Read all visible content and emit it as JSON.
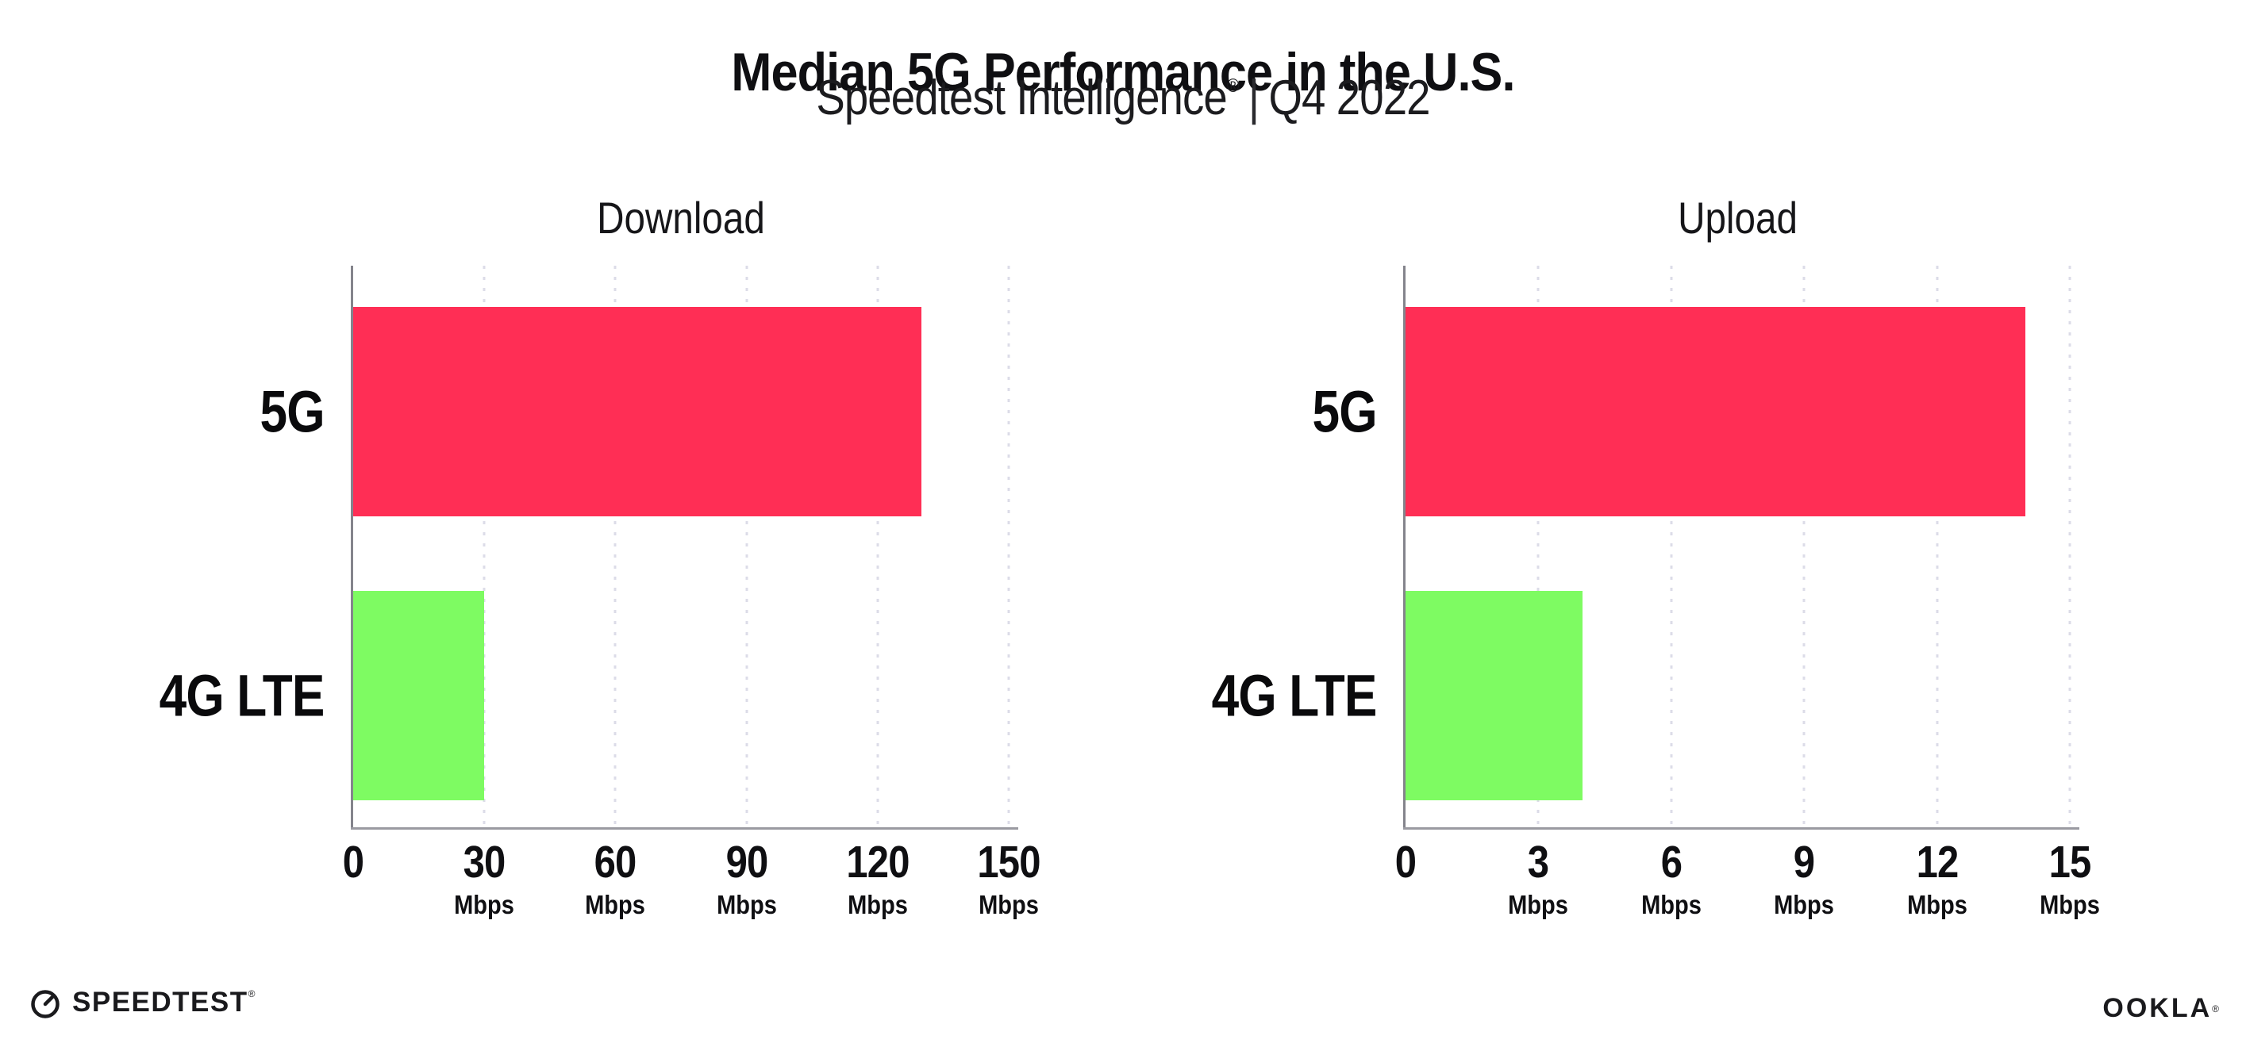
{
  "header": {
    "title": "Median 5G Performance in the U.S.",
    "subtitle_product": "Speedtest Intelligence",
    "registered_mark": "®",
    "subtitle_separator": "|",
    "subtitle_period": "Q4 2022"
  },
  "footer": {
    "speedtest_wordmark": "SPEEDTEST",
    "speedtest_registered": "®",
    "ookla_wordmark": "OOKLA",
    "ookla_registered": "®"
  },
  "colors": {
    "bar_5g": "#FF2E55",
    "bar_4g_lte": "#7EFB62",
    "gridline": "#DCDCE8",
    "axis": "#9A9AA1",
    "text": "#0F0F12"
  },
  "chart_data": [
    {
      "type": "bar",
      "orientation": "horizontal",
      "title": "Download",
      "categories": [
        "5G",
        "4G LTE"
      ],
      "values": [
        130,
        30
      ],
      "unit": "Mbps",
      "xlim": [
        0,
        150
      ],
      "xticks": [
        0,
        30,
        60,
        90,
        120,
        150
      ],
      "xtick_unit": "Mbps",
      "bar_colors": [
        "#FF2E55",
        "#7EFB62"
      ],
      "grid": "dotted vertical gridlines at each tick",
      "legend": "none"
    },
    {
      "type": "bar",
      "orientation": "horizontal",
      "title": "Upload",
      "categories": [
        "5G",
        "4G LTE"
      ],
      "values": [
        14,
        4
      ],
      "unit": "Mbps",
      "xlim": [
        0,
        15
      ],
      "xticks": [
        0,
        3,
        6,
        9,
        12,
        15
      ],
      "xtick_unit": "Mbps",
      "bar_colors": [
        "#FF2E55",
        "#7EFB62"
      ],
      "grid": "dotted vertical gridlines at each tick",
      "legend": "none"
    }
  ]
}
